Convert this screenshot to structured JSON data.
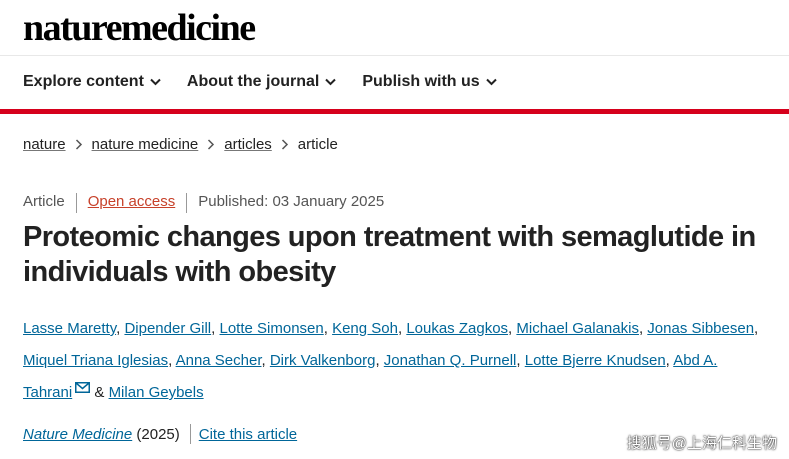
{
  "header": {
    "logo": {
      "part1": "nature",
      "part2": "medicine"
    },
    "nav": [
      "Explore content",
      "About the journal",
      "Publish with us"
    ]
  },
  "breadcrumb": {
    "links": [
      "nature",
      "nature medicine",
      "articles"
    ],
    "current": "article"
  },
  "article": {
    "type": "Article",
    "access": "Open access",
    "published": "Published: 03 January 2025",
    "title": "Proteomic changes upon treatment with semaglutide in individuals with obesity",
    "authors": [
      "Lasse Maretty",
      "Dipender Gill",
      "Lotte Simonsen",
      "Keng Soh",
      "Loukas Zagkos",
      "Michael Galanakis",
      "Jonas Sibbesen",
      "Miquel Triana Iglesias",
      "Anna Secher",
      "Dirk Valkenborg",
      "Jonathan Q. Purnell",
      "Lotte Bjerre Knudsen",
      "Abd A. Tahrani",
      "Milan Geybels"
    ],
    "author_separator": ",",
    "last_separator": "&",
    "citation": {
      "journal": "Nature Medicine",
      "year": "(2025)",
      "cite": "Cite this article"
    }
  },
  "watermark": "搜狐号@上海仁科生物"
}
